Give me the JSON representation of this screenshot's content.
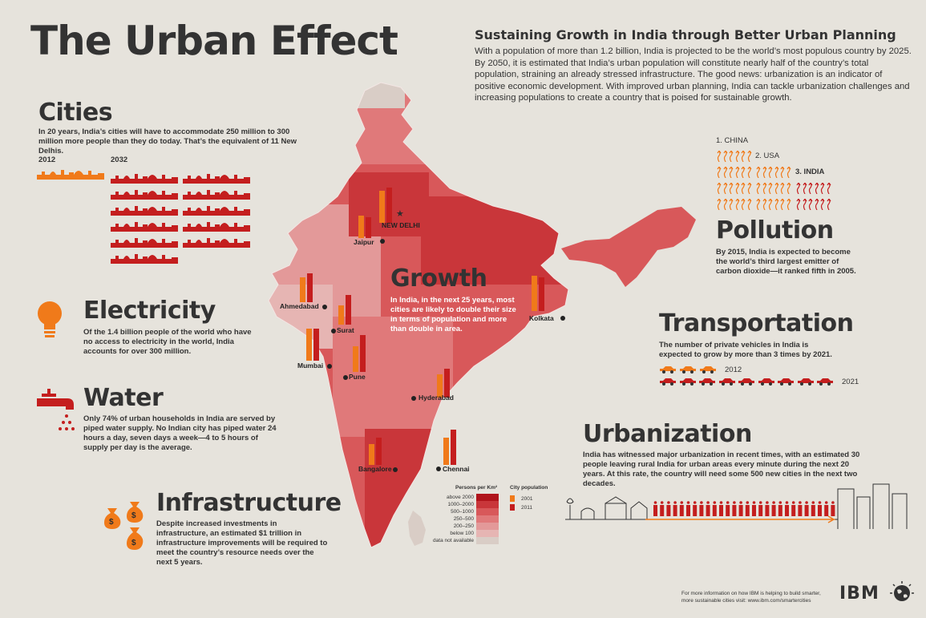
{
  "title": "The Urban Effect",
  "subtitle": "Sustaining Growth in India through Better Urban Planning",
  "intro": "With a population of more than 1.2 billion, India is projected to be the world’s most populous country by 2025. By 2050, it is estimated that India’s urban population will constitute nearly half of the country’s total population, straining an already stressed infrastructure. The good news: urbanization is an indicator of positive economic development. With improved urban planning, India can tackle urbanization challenges and increasing populations to create a country that is poised for sustainable growth.",
  "cities": {
    "heading": "Cities",
    "text": "In 20 years, India’s cities will have to accommodate 250 million to 300 million more people than they do today. That’s the equivalent of 11 New Delhis.",
    "year_a": "2012",
    "year_b": "2032"
  },
  "electricity": {
    "heading": "Electricity",
    "text": "Of the 1.4 billion people of the world who have no access to electricity in the world, India accounts for over 300 million."
  },
  "water": {
    "heading": "Water",
    "text": "Only 74% of urban households in India are served by piped water supply. No Indian city has piped water 24 hours a day, seven days a week—4 to 5 hours of supply per day is the average."
  },
  "infrastructure": {
    "heading": "Infrastructure",
    "text": "Despite increased investments in infrastructure, an estimated $1 trillion in infrastructure improvements will be required to meet the country’s resource needs over the next 5 years."
  },
  "growth": {
    "heading": "Growth",
    "text": "In India, in the next 25 years, most cities are likely to double their size in terms of population and more than double in area."
  },
  "pollution": {
    "heading": "Pollution",
    "text": "By 2015, India is expected to become the world’s third largest emitter of carbon dioxide—it ranked fifth in 2005.",
    "rank1": "1. CHINA",
    "rank2": "2. USA",
    "rank3": "3. INDIA"
  },
  "transportation": {
    "heading": "Transportation",
    "text": "The number of private vehicles in India is expected to grow by more than 3 times by 2021.",
    "year_a": "2012",
    "year_b": "2021"
  },
  "urbanization": {
    "heading": "Urbanization",
    "text": "India has witnessed major urbanization in recent times, with an estimated 30 people leaving rural India for urban areas every minute during the next 20 years. At this rate, the country will need some 500 new cities in the next two decades."
  },
  "map_cities": [
    {
      "name": "NEW DELHI",
      "v2001": 0.66,
      "v2011": 0.74
    },
    {
      "name": "Jaipur",
      "v2001": 0.46,
      "v2011": 0.44
    },
    {
      "name": "Ahmedabad",
      "v2001": 0.52,
      "v2011": 0.6
    },
    {
      "name": "Surat",
      "v2001": 0.4,
      "v2011": 0.62
    },
    {
      "name": "Mumbai",
      "v2001": 0.66,
      "v2011": 0.66
    },
    {
      "name": "Pune",
      "v2001": 0.54,
      "v2011": 0.76
    },
    {
      "name": "Kolkata",
      "v2001": 0.74,
      "v2011": 0.7
    },
    {
      "name": "Hyderabad",
      "v2001": 0.48,
      "v2011": 0.6
    },
    {
      "name": "Bangalore",
      "v2001": 0.44,
      "v2011": 0.56
    },
    {
      "name": "Chennai",
      "v2001": 0.56,
      "v2011": 0.74
    }
  ],
  "legend": {
    "density_title": "Persons per Km²",
    "density": [
      {
        "label": "above 2000",
        "color": "#b0141b"
      },
      {
        "label": "1000–2000",
        "color": "#c9363a"
      },
      {
        "label": "500–1000",
        "color": "#d8585a"
      },
      {
        "label": "250–500",
        "color": "#e0797a"
      },
      {
        "label": "200–250",
        "color": "#e39999"
      },
      {
        "label": "below 100",
        "color": "#e6b5b3"
      },
      {
        "label": "data not available",
        "color": "#d9cdc6"
      }
    ],
    "pop_title": "City population",
    "pop": [
      {
        "label": "2001",
        "color": "#f07a1a"
      },
      {
        "label": "2011",
        "color": "#c41e1e"
      }
    ]
  },
  "footer": {
    "line1": "For more information on how IBM is helping to build smarter,",
    "line2": "more sustainable cities visit: www.ibm.com/smartercities",
    "logo": "IBM"
  },
  "colors": {
    "accent": "#c41e1e",
    "orange": "#f07a1a",
    "bg": "#e6e3dc"
  }
}
